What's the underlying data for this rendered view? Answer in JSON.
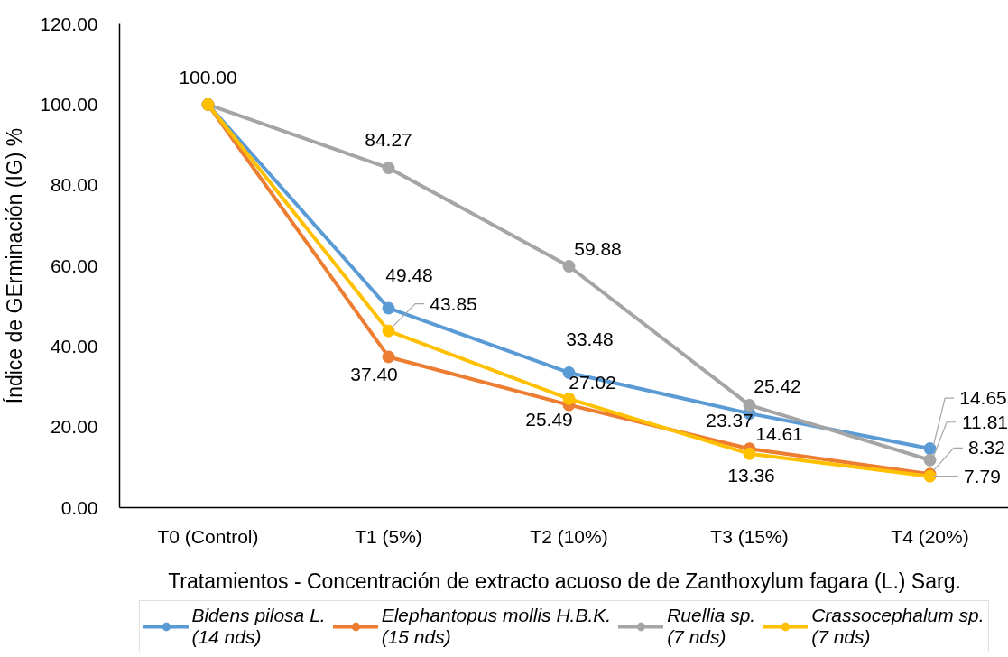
{
  "chart_data": {
    "type": "line",
    "xlabel": "Tratamientos - Concentración de extracto acuoso de de Zanthoxylum fagara (L.) Sarg.",
    "ylabel": "Índice de GErminación (IG) %",
    "categories": [
      "T0 (Control)",
      "T1 (5%)",
      "T2 (10%)",
      "T3 (15%)",
      "T4 (20%)"
    ],
    "ylim": [
      0,
      120
    ],
    "yticks": [
      {
        "value": 0,
        "label": "0.00"
      },
      {
        "value": 20,
        "label": "20.00"
      },
      {
        "value": 40,
        "label": "40.00"
      },
      {
        "value": 60,
        "label": "60.00"
      },
      {
        "value": 80,
        "label": "80.00"
      },
      {
        "value": 100,
        "label": "100.00"
      },
      {
        "value": 120,
        "label": "120.00"
      }
    ],
    "legend": "bottom",
    "marker": "circle",
    "line_style": "solid",
    "series": [
      {
        "name": "Bidens pilosa L. (14 nds)",
        "color": "#5b9bd5",
        "values": [
          100,
          49.48,
          33.48,
          23.37,
          14.65
        ],
        "value_labels": [
          null,
          "49.48",
          "33.48",
          "23.37",
          "14.65"
        ]
      },
      {
        "name": "Elephantopus mollis H.B.K. (15 nds)",
        "color": "#ed7d31",
        "values": [
          100,
          37.4,
          25.49,
          14.61,
          8.32
        ],
        "value_labels": [
          null,
          "37.40",
          "25.49",
          "14.61",
          "8.32"
        ]
      },
      {
        "name": "Ruellia sp. (7 nds)",
        "color": "#a5a5a5",
        "values": [
          100,
          84.27,
          59.88,
          25.42,
          11.81
        ],
        "value_labels": [
          null,
          "84.27",
          "59.88",
          "25.42",
          "11.81"
        ]
      },
      {
        "name": "Crassocephalum sp. (7 nds)",
        "color": "#ffc000",
        "values": [
          100,
          43.85,
          27.02,
          13.36,
          7.79
        ],
        "value_labels": [
          "100.00",
          "43.85",
          "27.02",
          "13.36",
          "7.79"
        ]
      }
    ]
  }
}
